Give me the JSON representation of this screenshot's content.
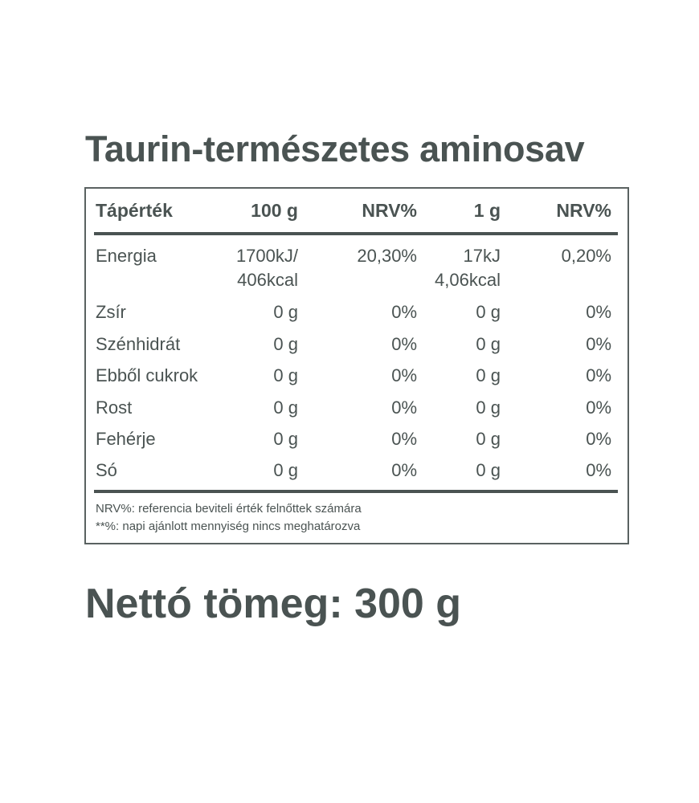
{
  "title": "Taurin-természetes aminosav",
  "table": {
    "headers": [
      "Tápérték",
      "100 g",
      "NRV%",
      "1 g",
      "NRV%"
    ],
    "rows": [
      {
        "name": "Energia",
        "per100": "1700kJ/",
        "per100b": "406kcal",
        "nrv100": "20,30%",
        "per1": "17kJ",
        "per1b": "4,06kcal",
        "nrv1": "0,20%"
      },
      {
        "name": "Zsír",
        "per100": "0 g",
        "nrv100": "0%",
        "per1": "0 g",
        "nrv1": "0%"
      },
      {
        "name": "Szénhidrát",
        "per100": "0 g",
        "nrv100": "0%",
        "per1": "0 g",
        "nrv1": "0%"
      },
      {
        "name": "Ebből cukrok",
        "per100": "0 g",
        "nrv100": "0%",
        "per1": "0 g",
        "nrv1": "0%"
      },
      {
        "name": "Rost",
        "per100": "0 g",
        "nrv100": "0%",
        "per1": "0 g",
        "nrv1": "0%"
      },
      {
        "name": "Fehérje",
        "per100": "0 g",
        "nrv100": "0%",
        "per1": "0 g",
        "nrv1": "0%"
      },
      {
        "name": "Só",
        "per100": "0 g",
        "nrv100": "0%",
        "per1": "0 g",
        "nrv1": "0%"
      }
    ],
    "footnotes": [
      "NRV%: referencia beviteli érték felnőttek számára",
      "**%: napi ajánlott mennyiség nincs meghatározva"
    ]
  },
  "net_weight": "Nettó tömeg: 300 g",
  "colors": {
    "text": "#4a5352"
  }
}
